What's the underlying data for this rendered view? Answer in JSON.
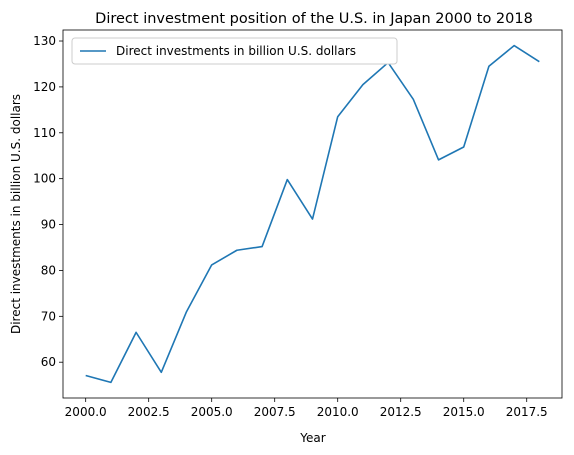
{
  "chart_data": {
    "type": "line",
    "title": "Direct investment position of the U.S. in Japan 2000 to 2018",
    "xlabel": "Year",
    "ylabel": "Direct investments in billion U.S. dollars",
    "xlim": [
      1999.1,
      2018.9
    ],
    "ylim": [
      52.2,
      132.4
    ],
    "xticks": [
      2000.0,
      2002.5,
      2005.0,
      2007.5,
      2010.0,
      2012.5,
      2015.0,
      2017.5
    ],
    "xtick_labels": [
      "2000.0",
      "2002.5",
      "2005.0",
      "2007.5",
      "2010.0",
      "2012.5",
      "2015.0",
      "2017.5"
    ],
    "yticks": [
      60,
      70,
      80,
      90,
      100,
      110,
      120,
      130
    ],
    "ytick_labels": [
      "60",
      "70",
      "80",
      "90",
      "100",
      "110",
      "120",
      "130"
    ],
    "grid": false,
    "legend_position": "top-left",
    "color": "#1f77b4",
    "series": [
      {
        "name": "Direct investments in billion U.S. dollars",
        "x": [
          2000,
          2001,
          2002,
          2003,
          2004,
          2005,
          2006,
          2007,
          2008,
          2009,
          2010,
          2011,
          2012,
          2013,
          2014,
          2015,
          2016,
          2017,
          2018
        ],
        "y": [
          57.1,
          55.6,
          66.5,
          57.8,
          71.0,
          81.2,
          84.4,
          85.2,
          99.8,
          91.2,
          113.5,
          120.5,
          125.3,
          117.3,
          104.1,
          106.9,
          124.5,
          129.0,
          125.5
        ]
      }
    ]
  }
}
